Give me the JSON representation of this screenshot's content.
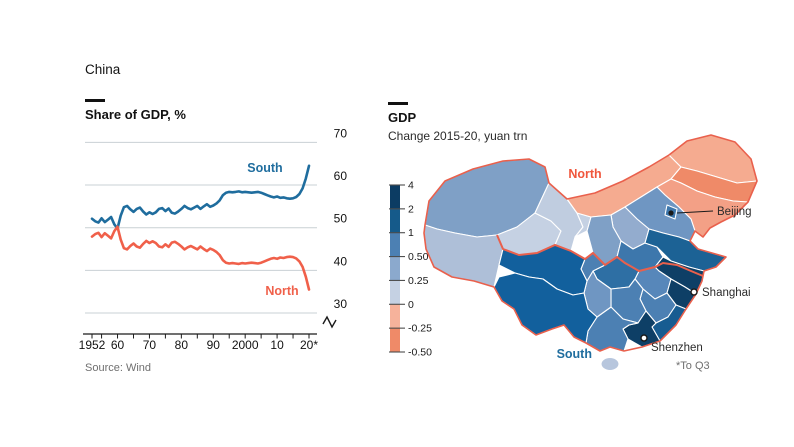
{
  "title": "China",
  "left_chart": {
    "title": "Share of GDP, %",
    "source": "Source: Wind",
    "south_label": "South",
    "north_label": "North"
  },
  "chart_data": {
    "type": "line",
    "title": "Share of GDP, %",
    "ylabel": "Share of GDP, %",
    "ylim": [
      30,
      70
    ],
    "yticks": [
      70,
      60,
      50,
      40,
      30
    ],
    "grid": true,
    "axis_break_symbol": true,
    "xtick_labels": [
      "1952",
      "60",
      "70",
      "80",
      "90",
      "2000",
      "10",
      "20*"
    ],
    "xtick_years": [
      1952,
      1960,
      1970,
      1980,
      1990,
      2000,
      2010,
      2020
    ],
    "years": [
      1952,
      1953,
      1954,
      1955,
      1956,
      1957,
      1958,
      1959,
      1960,
      1961,
      1962,
      1963,
      1964,
      1965,
      1966,
      1967,
      1968,
      1969,
      1970,
      1971,
      1972,
      1973,
      1974,
      1975,
      1976,
      1977,
      1978,
      1979,
      1980,
      1981,
      1982,
      1983,
      1984,
      1985,
      1986,
      1987,
      1988,
      1989,
      1990,
      1991,
      1992,
      1993,
      1994,
      1995,
      1996,
      1997,
      1998,
      1999,
      2000,
      2001,
      2002,
      2003,
      2004,
      2005,
      2006,
      2007,
      2008,
      2009,
      2010,
      2011,
      2012,
      2013,
      2014,
      2015,
      2016,
      2017,
      2018,
      2019,
      2020
    ],
    "series": [
      {
        "name": "South",
        "color": "#1f6d9e",
        "values": [
          52.1,
          51.5,
          51.2,
          52.2,
          51.3,
          51.9,
          52.5,
          50.8,
          49.8,
          52.8,
          54.8,
          55.1,
          54.3,
          53.7,
          54.4,
          54.7,
          53.8,
          53.1,
          53.6,
          53.2,
          53.6,
          54.4,
          54.6,
          53.9,
          54.5,
          53.5,
          53.3,
          53.8,
          54.4,
          55.1,
          54.6,
          54.3,
          54.7,
          55.1,
          54.4,
          55.0,
          55.5,
          54.9,
          55.2,
          55.7,
          56.4,
          57.6,
          58.2,
          58.4,
          58.3,
          58.4,
          58.5,
          58.3,
          58.4,
          58.3,
          58.2,
          58.3,
          58.4,
          58.2,
          57.9,
          57.6,
          57.3,
          57.1,
          57.3,
          57.0,
          57.1,
          56.9,
          56.8,
          56.9,
          57.2,
          57.9,
          59.2,
          61.5,
          64.5
        ]
      },
      {
        "name": "North",
        "color": "#f0604a",
        "values": [
          47.9,
          48.5,
          48.8,
          47.8,
          48.7,
          48.1,
          47.5,
          49.2,
          50.2,
          47.2,
          45.2,
          44.9,
          45.7,
          46.3,
          45.6,
          45.3,
          46.2,
          46.9,
          46.4,
          46.8,
          46.4,
          45.6,
          45.4,
          46.1,
          45.5,
          46.5,
          46.7,
          46.2,
          45.6,
          44.9,
          45.4,
          45.7,
          45.3,
          44.9,
          45.6,
          45.0,
          44.5,
          45.1,
          44.8,
          44.3,
          43.6,
          42.4,
          41.8,
          41.6,
          41.7,
          41.6,
          41.5,
          41.7,
          41.6,
          41.7,
          41.8,
          41.7,
          41.6,
          41.8,
          42.1,
          42.4,
          42.7,
          42.9,
          42.7,
          43.0,
          42.9,
          43.1,
          43.2,
          43.1,
          42.8,
          42.1,
          40.8,
          38.5,
          35.5
        ]
      }
    ]
  },
  "map": {
    "title": "GDP",
    "subtitle": "Change 2015-20, yuan trn",
    "footnote": "*To Q3",
    "labels": {
      "north": "North",
      "south": "South",
      "beijing": "Beijing",
      "shanghai": "Shanghai",
      "shenzhen": "Shenzhen"
    },
    "legend": {
      "tick_labels": [
        "4",
        "2",
        "1",
        "0.50",
        "0.25",
        "0",
        "-0.25",
        "-0.50"
      ],
      "segment_colors": [
        "#0c3c63",
        "#155a8a",
        "#4c80b3",
        "#8ba9cd",
        "#c5d1e3",
        "#f6b29b",
        "#ef8a68"
      ]
    },
    "regions": [
      {
        "name": "xinjiang",
        "color": "#7fa0c6"
      },
      {
        "name": "tibet",
        "color": "#aebfd8"
      },
      {
        "name": "qinghai",
        "color": "#c5d1e3"
      },
      {
        "name": "gansu",
        "color": "#c0cde0"
      },
      {
        "name": "ningxia",
        "color": "#c5d1e3"
      },
      {
        "name": "inner-mongolia",
        "color": "#f5ab90"
      },
      {
        "name": "heilongjiang",
        "color": "#f5ab90"
      },
      {
        "name": "jilin",
        "color": "#ef8a68"
      },
      {
        "name": "liaoning",
        "color": "#f3a086"
      },
      {
        "name": "hebei",
        "color": "#6f96c2"
      },
      {
        "name": "beijing",
        "color": "#3d77ac"
      },
      {
        "name": "shanxi",
        "color": "#93acce"
      },
      {
        "name": "shaanxi",
        "color": "#7fa0c6"
      },
      {
        "name": "henan",
        "color": "#3d77ac"
      },
      {
        "name": "shandong",
        "color": "#1c6295"
      },
      {
        "name": "jiangsu",
        "color": "#0e3f66"
      },
      {
        "name": "anhui",
        "color": "#5787ba"
      },
      {
        "name": "hubei",
        "color": "#2e6fa4"
      },
      {
        "name": "zhejiang",
        "color": "#0e3f66"
      },
      {
        "name": "jiangxi",
        "color": "#4c80b3"
      },
      {
        "name": "fujian",
        "color": "#175c91"
      },
      {
        "name": "hunan",
        "color": "#4c80b3"
      },
      {
        "name": "guangdong",
        "color": "#0e3f66"
      },
      {
        "name": "guangxi",
        "color": "#4c80b3"
      },
      {
        "name": "guizhou",
        "color": "#6f96c2"
      },
      {
        "name": "chongqing",
        "color": "#4c80b3"
      },
      {
        "name": "sichuan",
        "color": "#12609d"
      },
      {
        "name": "yunnan",
        "color": "#12609d"
      },
      {
        "name": "hainan",
        "color": "#b7c6dd"
      }
    ],
    "border_color": "#e9604c"
  },
  "colors": {
    "south_blue": "#1f6d9e",
    "north_orange": "#f0604a",
    "map_border": "#e9604c",
    "gridline": "#c9d0d4"
  }
}
